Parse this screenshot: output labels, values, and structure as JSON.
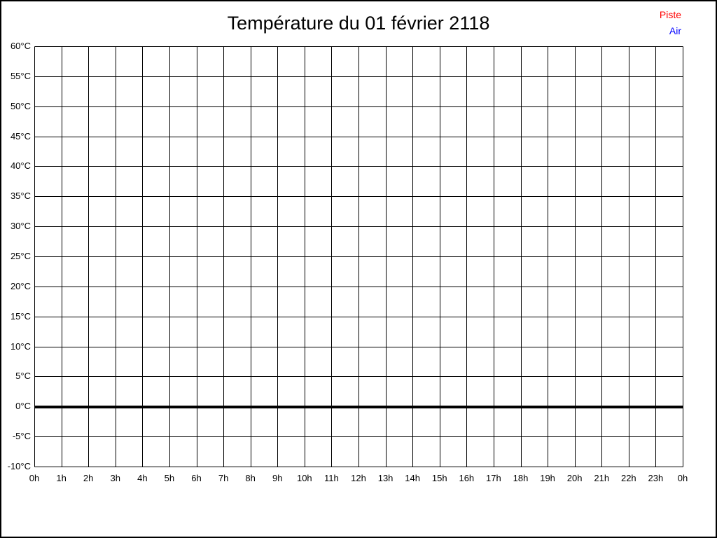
{
  "page": {
    "background_color": "#ffffff",
    "frame_border_color": "#000000"
  },
  "chart_data": {
    "type": "line",
    "title": "Température du 01 février 2118",
    "xlabel": "",
    "ylabel": "",
    "x_tick_labels": [
      "0h",
      "1h",
      "2h",
      "3h",
      "4h",
      "5h",
      "6h",
      "7h",
      "8h",
      "9h",
      "10h",
      "11h",
      "12h",
      "13h",
      "14h",
      "15h",
      "16h",
      "17h",
      "18h",
      "19h",
      "20h",
      "21h",
      "22h",
      "23h",
      "0h"
    ],
    "y_tick_labels": [
      "60°C",
      "55°C",
      "50°C",
      "45°C",
      "40°C",
      "35°C",
      "30°C",
      "25°C",
      "20°C",
      "15°C",
      "10°C",
      "5°C",
      "0°C",
      "-5°C",
      "-10°C"
    ],
    "ylim": [
      -10,
      60
    ],
    "y_step": 5,
    "x_intervals": 24,
    "grid": "on",
    "grid_color": "#000000",
    "emphasized_line_value": 0,
    "legend": {
      "position": "top-right",
      "entries": [
        {
          "label": "Piste",
          "color": "#ff0000"
        },
        {
          "label": "Air",
          "color": "#0000ff"
        }
      ]
    },
    "series": [
      {
        "name": "Piste",
        "color": "#ff0000",
        "values": []
      },
      {
        "name": "Air",
        "color": "#0000ff",
        "values": []
      }
    ]
  }
}
